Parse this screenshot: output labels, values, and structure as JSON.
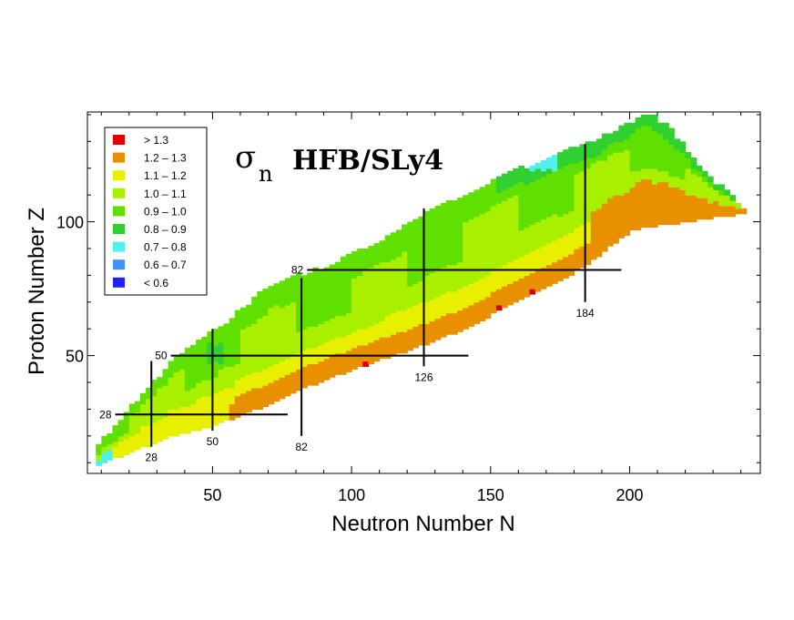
{
  "chart_data": {
    "type": "heatmap",
    "title": {
      "symbol": "σ",
      "subscript": "n",
      "text": "HFB/SLy4"
    },
    "xlabel": "Neutron Number N",
    "ylabel": "Proton Number Z",
    "xlim": [
      5,
      247
    ],
    "ylim": [
      6,
      141
    ],
    "x_ticks": [
      50,
      100,
      150,
      200
    ],
    "y_ticks": [
      50,
      100
    ],
    "legend": [
      {
        "label": "> 1.3",
        "color": "#e00000"
      },
      {
        "label": "1.2 – 1.3",
        "color": "#e89000"
      },
      {
        "label": "1.1 – 1.2",
        "color": "#e8f000"
      },
      {
        "label": "1.0 – 1.1",
        "color": "#a8f000"
      },
      {
        "label": "0.9 – 1.0",
        "color": "#60e000"
      },
      {
        "label": "0.8 – 0.9",
        "color": "#30d030"
      },
      {
        "label": "0.7 – 0.8",
        "color": "#50f0f0"
      },
      {
        "label": "0.6 – 0.7",
        "color": "#4090ff"
      },
      {
        "label": "< 0.6",
        "color": "#2020ff"
      }
    ],
    "magic_lines": [
      {
        "axis": "Z",
        "value": 28,
        "label": "28",
        "from": 15,
        "to": 77
      },
      {
        "axis": "Z",
        "value": 50,
        "label": "50",
        "from": 35,
        "to": 142
      },
      {
        "axis": "Z",
        "value": 82,
        "label": "82",
        "from": 84,
        "to": 197
      },
      {
        "axis": "N",
        "value": 28,
        "label": "28",
        "from": 16,
        "to": 48
      },
      {
        "axis": "N",
        "value": 50,
        "label": "50",
        "from": 22,
        "to": 60
      },
      {
        "axis": "N",
        "value": 82,
        "label": "82",
        "from": 20,
        "to": 79
      },
      {
        "axis": "N",
        "value": 126,
        "label": "126",
        "from": 46,
        "to": 105
      },
      {
        "axis": "N",
        "value": 184,
        "label": "184",
        "from": 70,
        "to": 129
      }
    ]
  }
}
